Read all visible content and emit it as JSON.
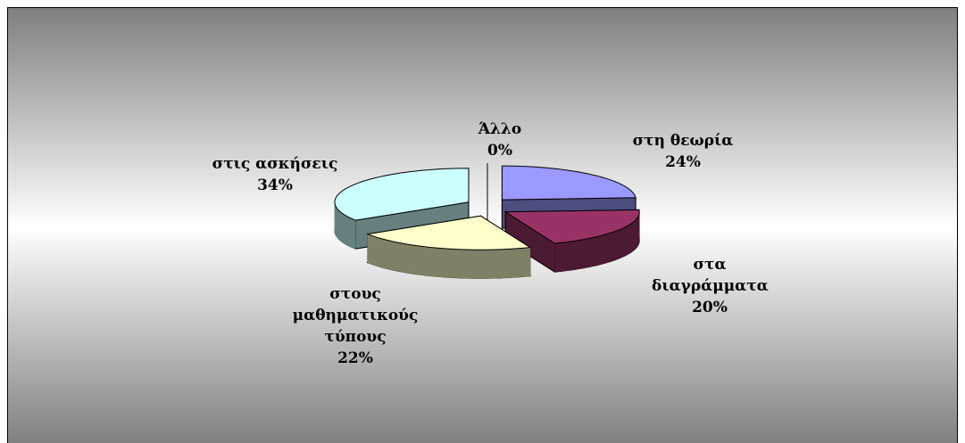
{
  "chart_data": {
    "type": "pie3d",
    "categories": [
      "στη θεωρία",
      "στα διαγράμματα",
      "στους μαθηματικούς τύπους",
      "στις ασκήσεις",
      "Άλλο"
    ],
    "values": [
      24,
      20,
      22,
      34,
      0
    ],
    "value_labels": [
      "24%",
      "20%",
      "22%",
      "34%",
      "0%"
    ],
    "colors": [
      "#9999ff",
      "#993366",
      "#ffffcc",
      "#ccffff",
      "#ffffff"
    ]
  }
}
